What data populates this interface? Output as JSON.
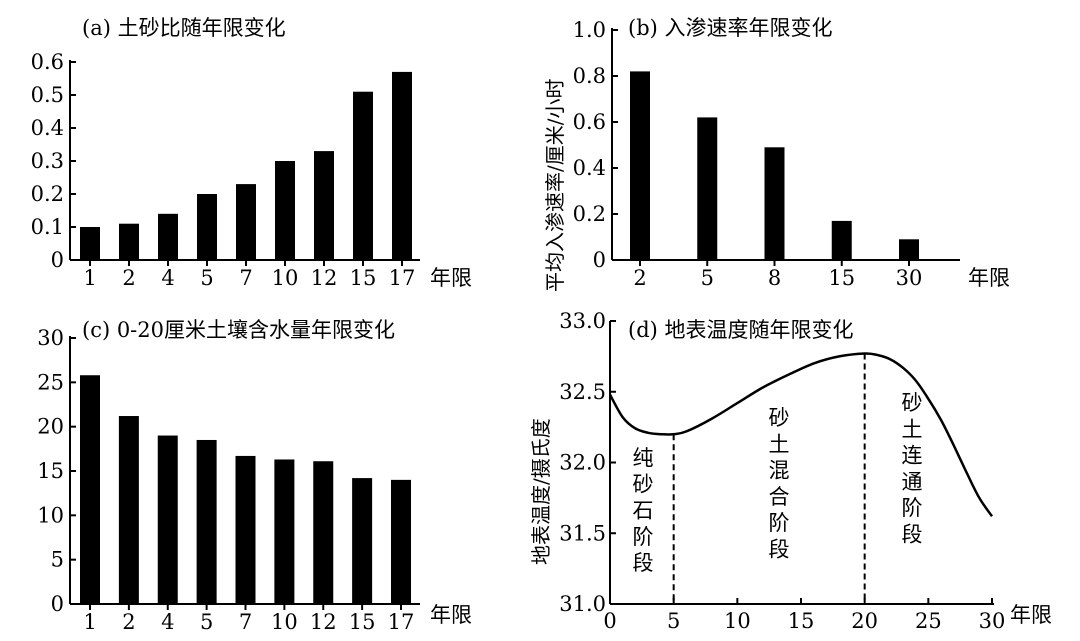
{
  "chart_data": [
    {
      "id": "a",
      "type": "bar",
      "title": "(a)  土砂比随年限变化",
      "categories": [
        "1",
        "2",
        "4",
        "5",
        "7",
        "10",
        "12",
        "15",
        "17"
      ],
      "values": [
        0.1,
        0.11,
        0.14,
        0.2,
        0.23,
        0.3,
        0.33,
        0.51,
        0.57
      ],
      "ylim": [
        0,
        0.6
      ],
      "yticks": [
        "0",
        "0.1",
        "0.2",
        "0.3",
        "0.4",
        "0.5",
        "0.6"
      ],
      "xlabel": "年限",
      "ylabel": ""
    },
    {
      "id": "b",
      "type": "bar",
      "title": "(b)  入渗速率年限变化",
      "categories": [
        "2",
        "5",
        "8",
        "15",
        "30"
      ],
      "values": [
        0.82,
        0.62,
        0.49,
        0.17,
        0.09
      ],
      "ylim": [
        0,
        1.0
      ],
      "yticks": [
        "0",
        "0.2",
        "0.4",
        "0.6",
        "0.8",
        "1.0"
      ],
      "xlabel": "年限",
      "ylabel": "平均入渗速率/厘米/小时"
    },
    {
      "id": "c",
      "type": "bar",
      "title": "(c)  0-20厘米土壤含水量年限变化",
      "categories": [
        "1",
        "2",
        "4",
        "5",
        "7",
        "10",
        "12",
        "15",
        "17"
      ],
      "values": [
        25.8,
        21.2,
        19.0,
        18.5,
        16.7,
        16.3,
        16.1,
        14.2,
        14.0
      ],
      "ylim": [
        0,
        30
      ],
      "yticks": [
        "0",
        "5",
        "10",
        "15",
        "20",
        "25",
        "30"
      ],
      "xlabel": "年限",
      "ylabel": ""
    },
    {
      "id": "d",
      "type": "line",
      "title": "(d)  地表温度随年限变化",
      "x": [
        0,
        1,
        2,
        3,
        4,
        5,
        6,
        8,
        10,
        12,
        14,
        16,
        18,
        20,
        21,
        22,
        23,
        24,
        25,
        26,
        27,
        28,
        29,
        30
      ],
      "y": [
        32.48,
        32.32,
        32.24,
        32.21,
        32.2,
        32.2,
        32.22,
        32.31,
        32.42,
        32.53,
        32.62,
        32.7,
        32.75,
        32.77,
        32.76,
        32.73,
        32.67,
        32.58,
        32.45,
        32.3,
        32.12,
        31.93,
        31.75,
        31.62
      ],
      "xlim": [
        0,
        30
      ],
      "ylim": [
        31.0,
        33.0
      ],
      "xticks": [
        "0",
        "5",
        "10",
        "15",
        "20",
        "25",
        "30"
      ],
      "yticks": [
        "31.0",
        "31.5",
        "32.0",
        "32.5",
        "33.0"
      ],
      "xlabel": "年限",
      "ylabel": "地表温度/摄氏度",
      "vlines": [
        5,
        20
      ],
      "stages": [
        "纯砂石阶段",
        "砂土混合阶段",
        "砂土连通阶段"
      ]
    }
  ]
}
